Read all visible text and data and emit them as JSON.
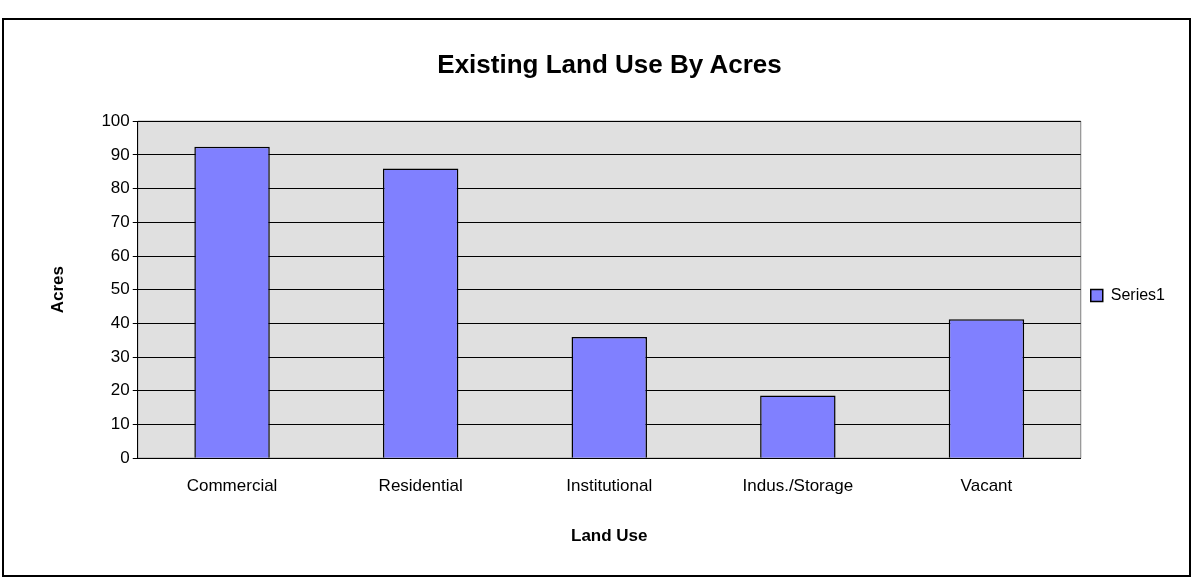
{
  "chart_data": {
    "type": "bar",
    "title": "Existing Land Use By Acres",
    "xlabel": "Land Use",
    "ylabel": "Acres",
    "categories": [
      "Commercial",
      "Residential",
      "Institutional",
      "Indus./Storage",
      "Vacant"
    ],
    "series": [
      {
        "name": "Series1",
        "color": "#8080ff",
        "values": [
          92.4,
          86,
          36,
          18.6,
          41.2
        ]
      }
    ],
    "ylim": [
      0,
      100
    ],
    "yticks": [
      0,
      10,
      20,
      30,
      40,
      50,
      60,
      70,
      80,
      90,
      100
    ],
    "grid": "y",
    "legend": "right"
  }
}
